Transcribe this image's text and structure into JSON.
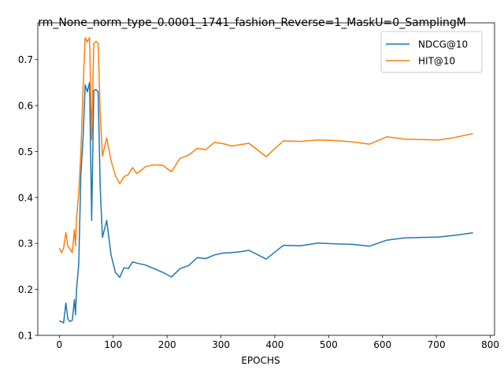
{
  "chart_data": {
    "type": "line",
    "title": "rm_None_norm_type_0.0001_1741_fashion_Reverse=1_MaskU=0_SamplingM",
    "xlabel": "EPOCHS",
    "ylabel": "",
    "xlim": [
      -40,
      808
    ],
    "ylim": [
      0.1,
      0.78
    ],
    "xticks": [
      0,
      100,
      200,
      300,
      400,
      500,
      600,
      700,
      800
    ],
    "xtick_labels": [
      "0",
      "100",
      "200",
      "300",
      "400",
      "500",
      "600",
      "700",
      "800"
    ],
    "yticks": [
      0.1,
      0.2,
      0.3,
      0.4,
      0.5,
      0.6,
      0.7
    ],
    "ytick_labels": [
      "0.1",
      "0.2",
      "0.3",
      "0.4",
      "0.5",
      "0.6",
      "0.7"
    ],
    "grid": false,
    "legend_position": "upper right",
    "series": [
      {
        "name": "NDCG@10",
        "color": "#1f77b4",
        "x": [
          0,
          4,
          8,
          12,
          16,
          20,
          24,
          28,
          30,
          32,
          36,
          40,
          44,
          48,
          52,
          56,
          60,
          64,
          68,
          72,
          76,
          80,
          88,
          96,
          104,
          112,
          120,
          128,
          136,
          144,
          160,
          176,
          192,
          208,
          224,
          240,
          256,
          272,
          288,
          304,
          320,
          336,
          352,
          384,
          416,
          448,
          480,
          512,
          544,
          576,
          608,
          640,
          672,
          704,
          736,
          768
        ],
        "y": [
          0.131,
          0.13,
          0.127,
          0.17,
          0.135,
          0.13,
          0.133,
          0.178,
          0.145,
          0.2,
          0.255,
          0.45,
          0.53,
          0.645,
          0.63,
          0.65,
          0.35,
          0.632,
          0.635,
          0.63,
          0.42,
          0.313,
          0.35,
          0.275,
          0.237,
          0.226,
          0.247,
          0.245,
          0.26,
          0.257,
          0.253,
          0.245,
          0.237,
          0.227,
          0.245,
          0.252,
          0.269,
          0.267,
          0.275,
          0.279,
          0.28,
          0.282,
          0.285,
          0.266,
          0.296,
          0.295,
          0.301,
          0.299,
          0.298,
          0.294,
          0.307,
          0.312,
          0.313,
          0.314,
          0.318,
          0.323
        ]
      },
      {
        "name": "HIT@10",
        "color": "#ff7f0e",
        "x": [
          0,
          4,
          8,
          12,
          16,
          20,
          24,
          28,
          30,
          32,
          36,
          40,
          44,
          48,
          52,
          56,
          60,
          64,
          68,
          72,
          76,
          80,
          88,
          96,
          104,
          112,
          120,
          128,
          136,
          144,
          160,
          176,
          192,
          208,
          224,
          240,
          256,
          272,
          288,
          304,
          320,
          336,
          352,
          384,
          416,
          448,
          480,
          512,
          544,
          576,
          608,
          640,
          672,
          704,
          736,
          768
        ],
        "y": [
          0.29,
          0.28,
          0.29,
          0.324,
          0.293,
          0.288,
          0.28,
          0.33,
          0.295,
          0.355,
          0.41,
          0.5,
          0.64,
          0.748,
          0.738,
          0.748,
          0.525,
          0.735,
          0.74,
          0.735,
          0.58,
          0.49,
          0.53,
          0.48,
          0.448,
          0.43,
          0.445,
          0.45,
          0.465,
          0.452,
          0.467,
          0.471,
          0.47,
          0.456,
          0.485,
          0.492,
          0.507,
          0.504,
          0.52,
          0.517,
          0.512,
          0.515,
          0.518,
          0.489,
          0.523,
          0.522,
          0.525,
          0.524,
          0.521,
          0.516,
          0.532,
          0.527,
          0.526,
          0.525,
          0.531,
          0.539
        ]
      }
    ]
  }
}
